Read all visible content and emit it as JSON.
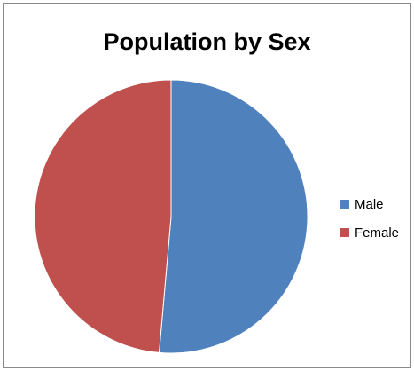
{
  "chart_data": {
    "type": "pie",
    "title": "Population by Sex",
    "categories": [
      "Male",
      "Female"
    ],
    "values": [
      51.4,
      48.6
    ],
    "colors": [
      "#4f81bd",
      "#c0504d"
    ],
    "legend_position": "right",
    "start_angle_deg": 0,
    "direction": "clockwise"
  }
}
